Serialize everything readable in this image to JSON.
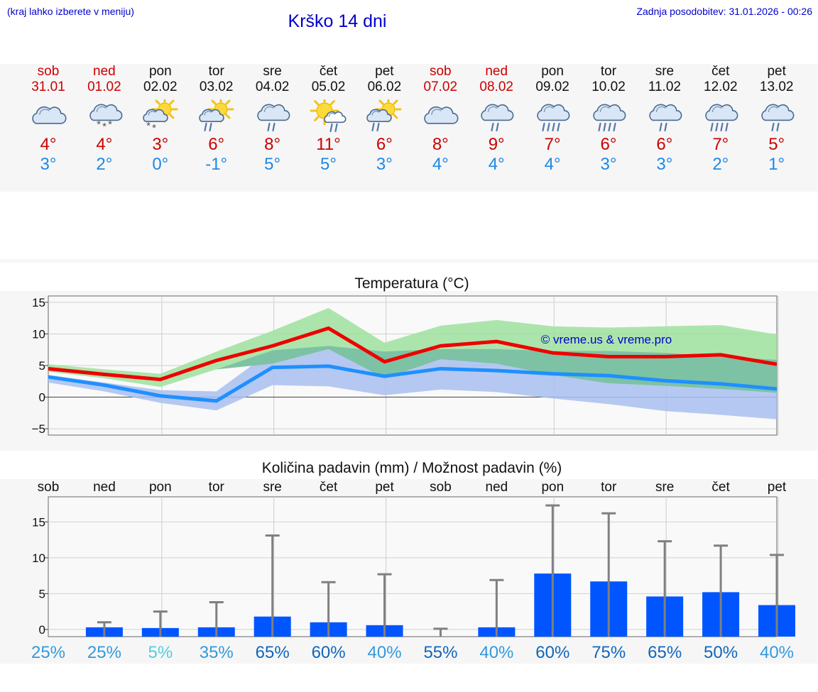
{
  "header": {
    "hint": "(kraj lahko izberete v meniju)",
    "title": "Krško 14 dni",
    "updated": "Zadnja posodobitev: 31.01.2026 - 00:26"
  },
  "days": [
    {
      "name": "sob",
      "date": "31.01",
      "weekend": true,
      "icon": "cloudy-icon",
      "max": "4°",
      "min": "3°"
    },
    {
      "name": "ned",
      "date": "01.02",
      "weekend": true,
      "icon": "cloudy-snow-icon",
      "max": "4°",
      "min": "2°"
    },
    {
      "name": "pon",
      "date": "02.02",
      "weekend": false,
      "icon": "partly-cloudy-snow-icon",
      "max": "3°",
      "min": "0°"
    },
    {
      "name": "tor",
      "date": "03.02",
      "weekend": false,
      "icon": "partly-cloudy-rain-icon",
      "max": "6°",
      "min": "-1°"
    },
    {
      "name": "sre",
      "date": "04.02",
      "weekend": false,
      "icon": "cloudy-rain-icon",
      "max": "8°",
      "min": "5°"
    },
    {
      "name": "čet",
      "date": "05.02",
      "weekend": false,
      "icon": "sunny-rain-icon",
      "max": "11°",
      "min": "5°"
    },
    {
      "name": "pet",
      "date": "06.02",
      "weekend": false,
      "icon": "partly-cloudy-rain-icon",
      "max": "6°",
      "min": "3°"
    },
    {
      "name": "sob",
      "date": "07.02",
      "weekend": true,
      "icon": "cloudy-icon",
      "max": "8°",
      "min": "4°"
    },
    {
      "name": "ned",
      "date": "08.02",
      "weekend": true,
      "icon": "cloudy-rain-icon",
      "max": "9°",
      "min": "4°"
    },
    {
      "name": "pon",
      "date": "09.02",
      "weekend": false,
      "icon": "cloudy-heavy-rain-icon",
      "max": "7°",
      "min": "4°"
    },
    {
      "name": "tor",
      "date": "10.02",
      "weekend": false,
      "icon": "cloudy-heavy-rain-icon",
      "max": "6°",
      "min": "3°"
    },
    {
      "name": "sre",
      "date": "11.02",
      "weekend": false,
      "icon": "cloudy-rain-icon",
      "max": "6°",
      "min": "3°"
    },
    {
      "name": "čet",
      "date": "12.02",
      "weekend": false,
      "icon": "cloudy-heavy-rain-icon",
      "max": "7°",
      "min": "2°"
    },
    {
      "name": "pet",
      "date": "13.02",
      "weekend": false,
      "icon": "cloudy-rain-icon",
      "max": "5°",
      "min": "1°"
    }
  ],
  "colors": {
    "max_line": "#ee0000",
    "min_line": "#1e90ff",
    "max_band": "#9fe29f",
    "min_band": "#a9bff0",
    "overlap_band": "#79bfa3",
    "bar": "#0055ff",
    "whisker": "#808080"
  },
  "chart_data": [
    {
      "type": "line",
      "title": "Temperatura (°C)",
      "watermark": "© vreme.us & vreme.pro",
      "x": [
        0,
        1,
        2,
        3,
        4,
        5,
        6,
        7,
        8,
        9,
        10,
        11,
        12,
        13
      ],
      "ylim": [
        -6,
        16
      ],
      "yticks": [
        15,
        10,
        5,
        0,
        -5
      ],
      "ytick_labels": [
        "15",
        "10",
        "5",
        "0",
        "−5"
      ],
      "series": [
        {
          "name": "max",
          "values": [
            4.5,
            3.6,
            2.8,
            5.8,
            8.1,
            10.9,
            5.6,
            8.1,
            8.8,
            7.0,
            6.4,
            6.4,
            6.7,
            5.2
          ]
        },
        {
          "name": "min",
          "values": [
            3.2,
            1.9,
            0.2,
            -0.6,
            4.7,
            4.9,
            3.3,
            4.5,
            4.2,
            3.7,
            3.4,
            2.6,
            2.1,
            1.3
          ]
        }
      ],
      "bands": [
        {
          "name": "max_range",
          "low": [
            4.0,
            3.0,
            1.6,
            4.4,
            5.3,
            7.6,
            3.0,
            6.0,
            5.3,
            3.5,
            2.2,
            1.8,
            1.3,
            0.7
          ],
          "high": [
            5.2,
            4.4,
            3.7,
            7.2,
            10.5,
            14.1,
            8.6,
            11.3,
            12.2,
            11.2,
            11.0,
            11.2,
            11.4,
            9.9
          ]
        },
        {
          "name": "min_range",
          "low": [
            2.3,
            0.9,
            -0.9,
            -2.1,
            1.9,
            1.7,
            0.3,
            1.2,
            0.8,
            -0.2,
            -1.1,
            -2.2,
            -2.8,
            -3.5
          ],
          "high": [
            3.5,
            2.3,
            1.1,
            0.9,
            7.4,
            8.1,
            7.2,
            7.6,
            7.6,
            7.3,
            7.3,
            7.0,
            6.4,
            5.9
          ]
        }
      ]
    },
    {
      "type": "bar",
      "title": "Količina padavin (mm) / Možnost padavin (%)",
      "categories": [
        "sob",
        "ned",
        "pon",
        "tor",
        "sre",
        "čet",
        "pet",
        "sob",
        "ned",
        "pon",
        "tor",
        "sre",
        "čet",
        "pet"
      ],
      "ylim": [
        -1,
        18.5
      ],
      "yticks": [
        15,
        10,
        5,
        0
      ],
      "ytick_labels": [
        "15",
        "10",
        "5",
        "0"
      ],
      "values": [
        0.0,
        0.3,
        0.2,
        0.3,
        1.8,
        1.0,
        0.6,
        0.0,
        0.3,
        7.8,
        6.7,
        4.6,
        5.2,
        3.4
      ],
      "upper": [
        0.0,
        1.0,
        2.5,
        3.8,
        13.1,
        6.6,
        7.7,
        0.1,
        6.9,
        17.3,
        16.2,
        12.3,
        11.7,
        10.4
      ],
      "probability_labels": [
        "25%",
        "25%",
        "5%",
        "35%",
        "65%",
        "60%",
        "40%",
        "55%",
        "40%",
        "60%",
        "75%",
        "65%",
        "50%",
        "40%"
      ],
      "probability_colors": [
        "#3399dd",
        "#3399dd",
        "#55ccdd",
        "#3399dd",
        "#1166bb",
        "#1166bb",
        "#3399dd",
        "#1166bb",
        "#3399dd",
        "#1166bb",
        "#1166bb",
        "#1166bb",
        "#1166bb",
        "#3399dd"
      ]
    }
  ]
}
